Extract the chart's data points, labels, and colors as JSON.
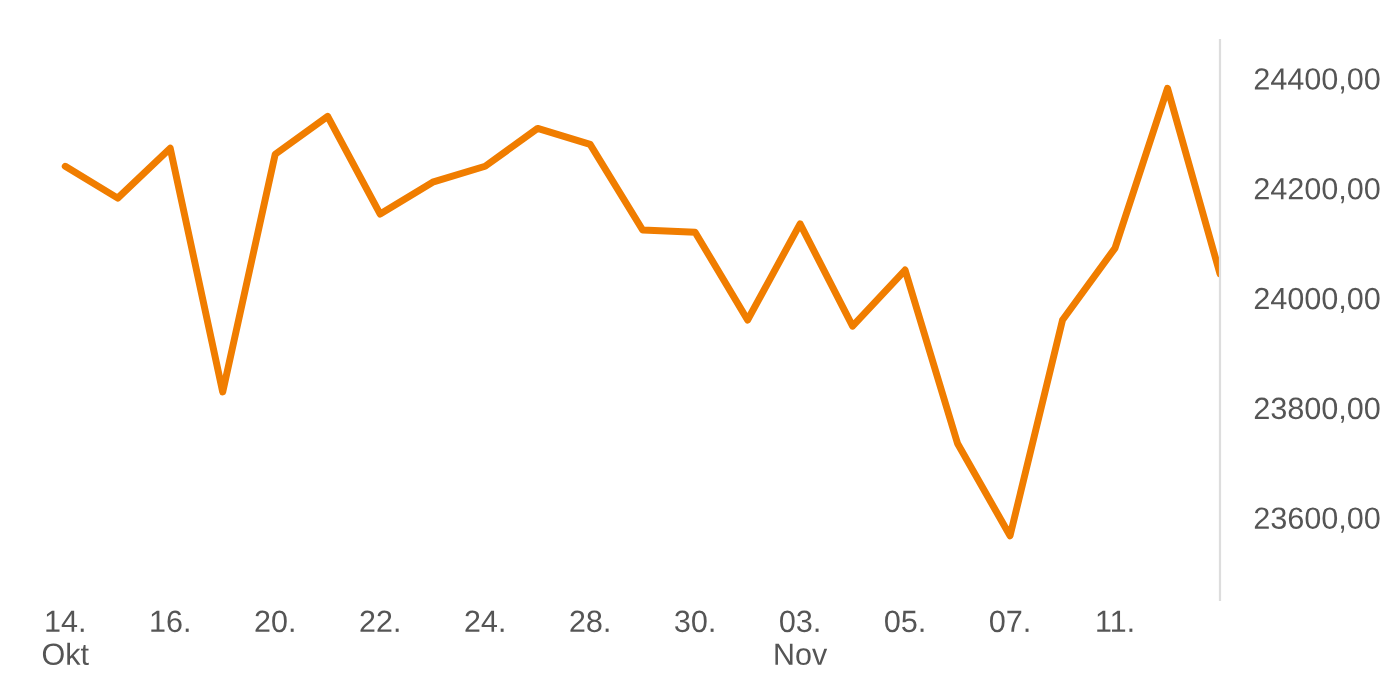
{
  "chart_data": {
    "type": "line",
    "categories": [
      "14.\nOkt",
      null,
      "16.",
      null,
      "20.",
      null,
      "22.",
      null,
      "24.",
      null,
      "28.",
      null,
      "30.",
      null,
      "03.\nNov",
      null,
      "05.",
      null,
      "07.",
      null,
      "11.",
      null,
      null
    ],
    "series": [
      {
        "color": "#f07d00",
        "values": [
          24240,
          24182,
          24273,
          23829,
          24262,
          24331,
          24153,
          24211,
          24240,
          24309,
          24280,
          24124,
          24120,
          23960,
          24135,
          23949,
          24051,
          23735,
          23567,
          23960,
          24091,
          24382,
          24044
        ]
      }
    ],
    "ylim": [
      23450,
      24470
    ],
    "yticks": [
      {
        "value": 23600,
        "label": "23600,00"
      },
      {
        "value": 23800,
        "label": "23800,00"
      },
      {
        "value": 24000,
        "label": "24000,00"
      },
      {
        "value": 24200,
        "label": "24200,00"
      },
      {
        "value": 24400,
        "label": "24400,00"
      }
    ],
    "grid": false,
    "legend": false,
    "marker": "none",
    "line_style": "solid"
  }
}
